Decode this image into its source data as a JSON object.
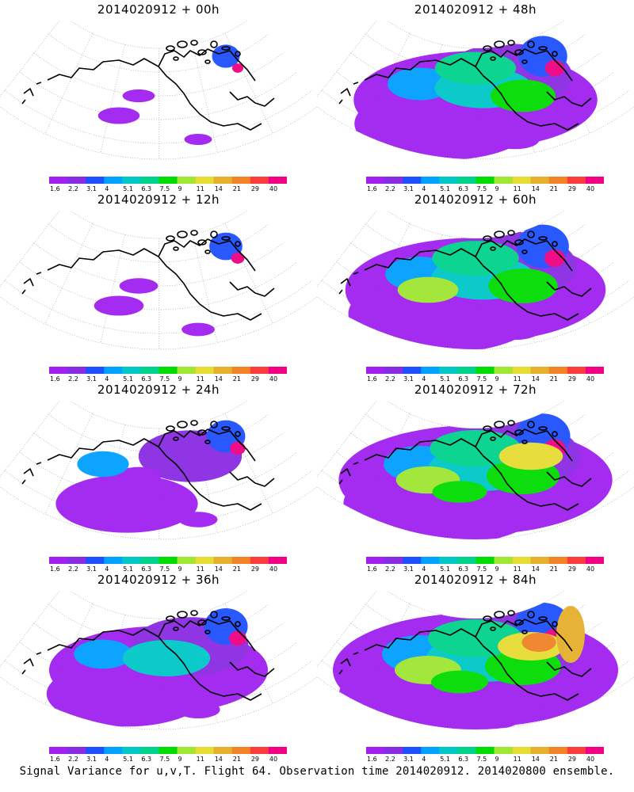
{
  "panels": [
    {
      "title": "2014020912 + 00h",
      "spread": 0.12
    },
    {
      "title": "2014020912 + 48h",
      "spread": 0.75
    },
    {
      "title": "2014020912 + 12h",
      "spread": 0.28
    },
    {
      "title": "2014020912 + 60h",
      "spread": 0.85
    },
    {
      "title": "2014020912 + 24h",
      "spread": 0.45
    },
    {
      "title": "2014020912 + 72h",
      "spread": 0.93
    },
    {
      "title": "2014020912 + 36h",
      "spread": 0.6
    },
    {
      "title": "2014020912 + 84h",
      "spread": 1.0
    }
  ],
  "colorbar": {
    "labels": [
      "1.6",
      "2.2",
      "3.1",
      "4",
      "5.1",
      "6.3",
      "7.5",
      "9",
      "11",
      "14",
      "21",
      "29",
      "40"
    ],
    "colors": [
      "#a020f0",
      "#8a2be2",
      "#1e50ff",
      "#00a0ff",
      "#00c8c8",
      "#00d28c",
      "#00dc00",
      "#a0e632",
      "#e6dc32",
      "#e6af2d",
      "#f08228",
      "#fa3c3c",
      "#f00082"
    ]
  },
  "footer": "Signal Variance for u,v,T. Flight 64. Observation time 2014020912. 2014020800 ensemble."
}
